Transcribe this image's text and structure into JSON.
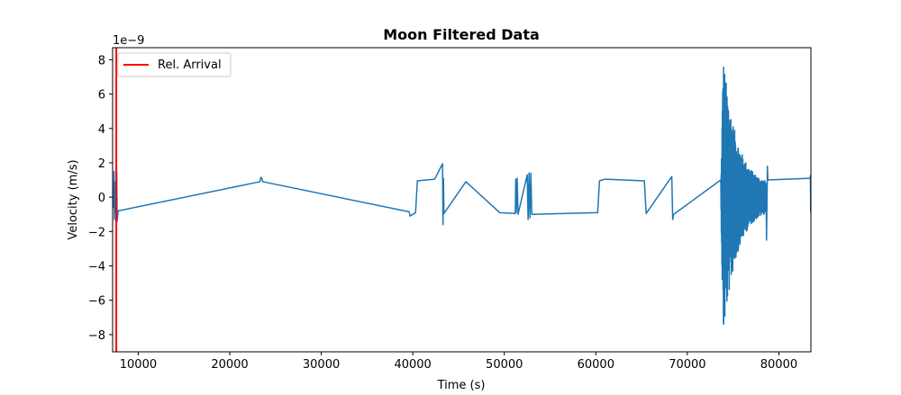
{
  "chart_data": {
    "type": "line",
    "title": "Moon Filtered Data",
    "xlabel": "Time (s)",
    "ylabel": "Velocity (m/s)",
    "y_scale_label": "1e−9",
    "xlim": [
      7200,
      83500
    ],
    "ylim": [
      -9.0,
      8.7
    ],
    "x_ticks": [
      10000,
      20000,
      30000,
      40000,
      50000,
      60000,
      70000,
      80000
    ],
    "x_tick_labels": [
      "10000",
      "20000",
      "30000",
      "40000",
      "50000",
      "60000",
      "70000",
      "80000"
    ],
    "y_ticks": [
      -8,
      -6,
      -4,
      -2,
      0,
      2,
      4,
      6,
      8
    ],
    "y_tick_labels": [
      "−8",
      "−6",
      "−4",
      "−2",
      "0",
      "2",
      "4",
      "6",
      "8"
    ],
    "grid": false,
    "legend_position": "top-left",
    "colors": {
      "signal": "#1f77b4",
      "arrival": "#ff0000"
    },
    "series": [
      {
        "name": "",
        "color": "#1f77b4",
        "x": [
          7250,
          7300,
          7350,
          7400,
          7450,
          7500,
          7550,
          7600,
          7650,
          7700,
          7800,
          23300,
          23400,
          23500,
          23600,
          39600,
          39700,
          40300,
          40500,
          42400,
          43250,
          43300,
          43350,
          43400,
          45800,
          49500,
          51200,
          51250,
          51300,
          51400,
          51500,
          52500,
          52600,
          52700,
          52800,
          52900,
          53000,
          60200,
          60400,
          61000,
          65300,
          65500,
          68300,
          68400,
          68500,
          73650
        ],
        "y": [
          0.5,
          -0.6,
          1.5,
          -1.3,
          0.9,
          -0.9,
          0.4,
          -0.5,
          1.5,
          -1.4,
          -0.8,
          0.9,
          1.15,
          1.1,
          0.9,
          -0.85,
          -1.1,
          -0.9,
          0.95,
          1.05,
          1.95,
          -1.6,
          1.1,
          -0.95,
          0.9,
          -0.9,
          -0.95,
          1.05,
          -0.9,
          1.1,
          -1.0,
          1.3,
          -1.3,
          1.4,
          -1.2,
          1.4,
          -1.0,
          -0.9,
          0.95,
          1.05,
          0.95,
          -0.95,
          1.2,
          -1.3,
          -1.0,
          1.0
        ]
      }
    ],
    "burst": {
      "x_start": 73650,
      "x_peak": 73900,
      "x_end": 78600,
      "peak_amplitude": 8.1,
      "tail_points": [
        {
          "x": 78650,
          "y": -2.5
        },
        {
          "x": 78750,
          "y": 1.8
        },
        {
          "x": 78800,
          "y": 1.0
        },
        {
          "x": 83400,
          "y": 1.1
        },
        {
          "x": 83450,
          "y": 1.25
        },
        {
          "x": 83480,
          "y": -0.9
        }
      ]
    },
    "vertical_lines": [
      {
        "name": "Rel. Arrival",
        "x": 7600,
        "color": "#ff0000"
      }
    ]
  }
}
